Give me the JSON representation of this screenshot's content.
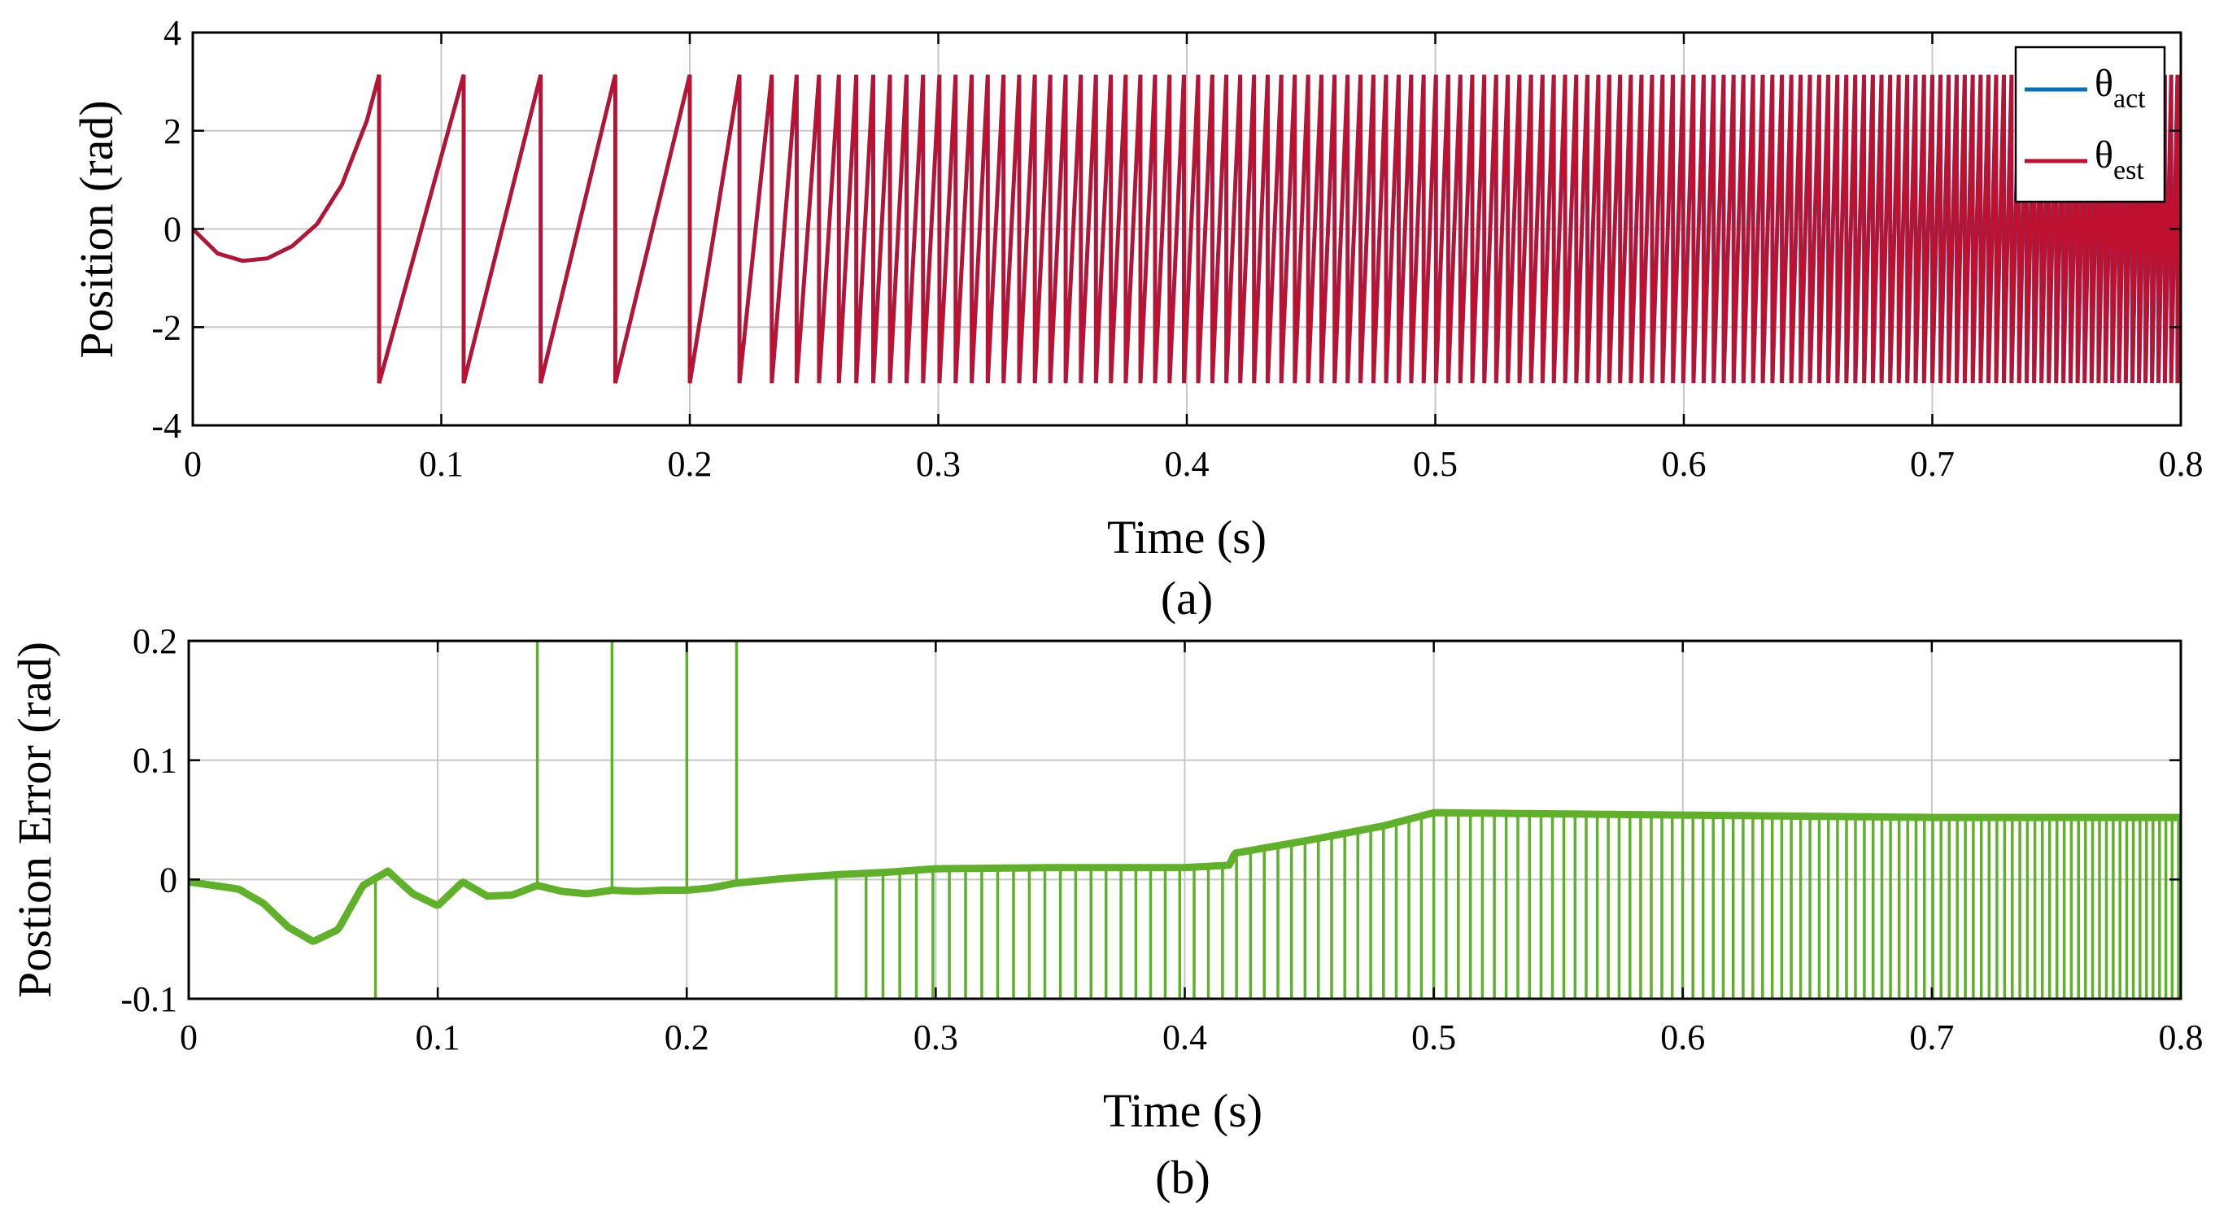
{
  "chart_data": [
    {
      "type": "line",
      "panel": "a",
      "caption": "(a)",
      "xlabel": "Time (s)",
      "ylabel": "Position (rad)",
      "xlim": [
        0,
        0.8
      ],
      "ylim": [
        -4,
        4
      ],
      "xticks": [
        0,
        0.1,
        0.2,
        0.3,
        0.4,
        0.5,
        0.6,
        0.7,
        0.8
      ],
      "xtick_labels": [
        "0",
        "0.1",
        "0.2",
        "0.3",
        "0.4",
        "0.5",
        "0.6",
        "0.7",
        "0.8"
      ],
      "yticks": [
        -4,
        -2,
        0,
        2,
        4
      ],
      "ytick_labels": [
        "-4",
        "-2",
        "0",
        "2",
        "4"
      ],
      "grid": true,
      "legend_position": "top-right",
      "series": [
        {
          "name": "θact",
          "base": "θ",
          "sub": "act",
          "color": "#0072BD"
        },
        {
          "name": "θest",
          "base": "θ",
          "sub": "est",
          "color": "#C0102F"
        }
      ],
      "start_curve": {
        "x": [
          0,
          0.01,
          0.02,
          0.03,
          0.04,
          0.05,
          0.06,
          0.07,
          0.075
        ],
        "y": [
          0,
          -0.5,
          -0.65,
          -0.6,
          -0.35,
          0.1,
          0.9,
          2.2,
          3.14
        ]
      },
      "wrap_times": [
        0.075,
        0.109,
        0.14,
        0.17,
        0.2,
        0.22,
        0.233,
        0.243,
        0.252,
        0.26,
        0.267
      ],
      "wrap_limits": [
        -3.14,
        3.14
      ],
      "dense_region": {
        "start": 0.267,
        "end": 0.8,
        "period_start": 0.0068,
        "period_end": 0.0025
      }
    },
    {
      "type": "line",
      "panel": "b",
      "caption": "(b)",
      "xlabel": "Time (s)",
      "ylabel": "Postion Error (rad)",
      "xlim": [
        0,
        0.8
      ],
      "ylim": [
        -0.1,
        0.2
      ],
      "xticks": [
        0,
        0.1,
        0.2,
        0.3,
        0.4,
        0.5,
        0.6,
        0.7,
        0.8
      ],
      "xtick_labels": [
        "0",
        "0.1",
        "0.2",
        "0.3",
        "0.4",
        "0.5",
        "0.6",
        "0.7",
        "0.8"
      ],
      "yticks": [
        -0.1,
        0,
        0.1,
        0.2
      ],
      "ytick_labels": [
        "-0.1",
        "0",
        "0.1",
        "0.2"
      ],
      "grid": true,
      "series": [
        {
          "name": "error",
          "color": "#5FB12A",
          "x": [
            0,
            0.01,
            0.02,
            0.03,
            0.04,
            0.05,
            0.06,
            0.07,
            0.08,
            0.09,
            0.1,
            0.11,
            0.12,
            0.13,
            0.14,
            0.15,
            0.16,
            0.17,
            0.18,
            0.19,
            0.2,
            0.21,
            0.22,
            0.24,
            0.26,
            0.28,
            0.3,
            0.35,
            0.4,
            0.418,
            0.42,
            0.45,
            0.48,
            0.5,
            0.55,
            0.6,
            0.7,
            0.8
          ],
          "y": [
            -0.002,
            -0.005,
            -0.008,
            -0.02,
            -0.04,
            -0.052,
            -0.042,
            -0.005,
            0.007,
            -0.012,
            -0.022,
            -0.002,
            -0.014,
            -0.013,
            -0.005,
            -0.01,
            -0.012,
            -0.009,
            -0.01,
            -0.009,
            -0.009,
            -0.007,
            -0.003,
            0.001,
            0.004,
            0.006,
            0.009,
            0.01,
            0.01,
            0.012,
            0.022,
            0.033,
            0.045,
            0.056,
            0.055,
            0.054,
            0.052,
            0.052
          ]
        }
      ],
      "spikes_up": [
        0.14,
        0.17,
        0.2,
        0.22
      ],
      "spikes_down": [
        0.075,
        0.26
      ],
      "dense_spikes_down": {
        "start": 0.272,
        "end": 0.8,
        "period_start": 0.0068,
        "period_end": 0.0025
      },
      "spike_top": 0.2,
      "spike_bottom": -0.1
    }
  ]
}
